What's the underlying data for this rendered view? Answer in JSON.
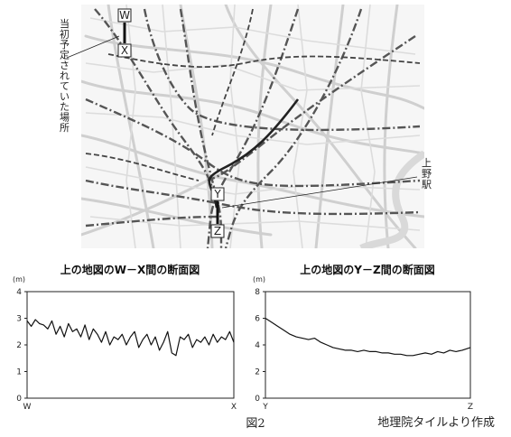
{
  "map": {
    "points": {
      "W": "W",
      "X": "X",
      "Y": "Y",
      "Z": "Z"
    },
    "annotation_left": "当初予定されていた場所",
    "annotation_right": "上野駅"
  },
  "chart_data": [
    {
      "type": "line",
      "title": "上の地図のW－X間の断面図",
      "unit": "(m)",
      "x_tick_labels": [
        "W",
        "X"
      ],
      "y_ticks": [
        0,
        1,
        2,
        3,
        4
      ],
      "ylim": [
        0,
        4
      ],
      "x": [
        0.0,
        0.02,
        0.04,
        0.06,
        0.08,
        0.1,
        0.12,
        0.14,
        0.16,
        0.18,
        0.2,
        0.22,
        0.24,
        0.26,
        0.28,
        0.3,
        0.32,
        0.34,
        0.36,
        0.38,
        0.4,
        0.42,
        0.44,
        0.46,
        0.48,
        0.5,
        0.52,
        0.54,
        0.56,
        0.58,
        0.6,
        0.62,
        0.64,
        0.66,
        0.68,
        0.7,
        0.72,
        0.74,
        0.76,
        0.78,
        0.8,
        0.82,
        0.84,
        0.86,
        0.88,
        0.9,
        0.92,
        0.94,
        0.96,
        0.98,
        1.0
      ],
      "series": [
        {
          "values": [
            2.9,
            2.7,
            2.95,
            2.8,
            2.75,
            2.6,
            2.9,
            2.4,
            2.7,
            2.3,
            2.8,
            2.5,
            2.6,
            2.3,
            2.75,
            2.2,
            2.6,
            2.4,
            2.1,
            2.5,
            2.0,
            2.3,
            2.2,
            2.4,
            2.0,
            2.3,
            2.5,
            1.9,
            2.2,
            2.4,
            2.0,
            2.3,
            1.8,
            2.1,
            2.5,
            1.7,
            1.6,
            2.3,
            2.2,
            2.4,
            1.9,
            2.2,
            2.1,
            2.3,
            2.0,
            2.4,
            2.1,
            2.3,
            2.2,
            2.5,
            2.1
          ]
        }
      ]
    },
    {
      "type": "line",
      "title": "上の地図のY－Z間の断面図",
      "unit": "(m)",
      "x_tick_labels": [
        "Y",
        "Z"
      ],
      "y_ticks": [
        0,
        2,
        4,
        6,
        8
      ],
      "ylim": [
        0,
        8
      ],
      "x": [
        0.0,
        0.03,
        0.06,
        0.09,
        0.12,
        0.15,
        0.18,
        0.21,
        0.24,
        0.27,
        0.3,
        0.33,
        0.36,
        0.39,
        0.42,
        0.45,
        0.48,
        0.51,
        0.54,
        0.57,
        0.6,
        0.63,
        0.66,
        0.69,
        0.72,
        0.75,
        0.78,
        0.81,
        0.84,
        0.87,
        0.9,
        0.93,
        0.96,
        1.0
      ],
      "series": [
        {
          "values": [
            6.0,
            5.7,
            5.4,
            5.1,
            4.8,
            4.6,
            4.5,
            4.4,
            4.5,
            4.2,
            4.0,
            3.8,
            3.7,
            3.6,
            3.6,
            3.5,
            3.6,
            3.5,
            3.5,
            3.4,
            3.4,
            3.3,
            3.3,
            3.2,
            3.2,
            3.3,
            3.4,
            3.3,
            3.5,
            3.4,
            3.6,
            3.5,
            3.6,
            3.8
          ]
        }
      ]
    }
  ],
  "caption": "図2",
  "source": "地理院タイルより作成"
}
